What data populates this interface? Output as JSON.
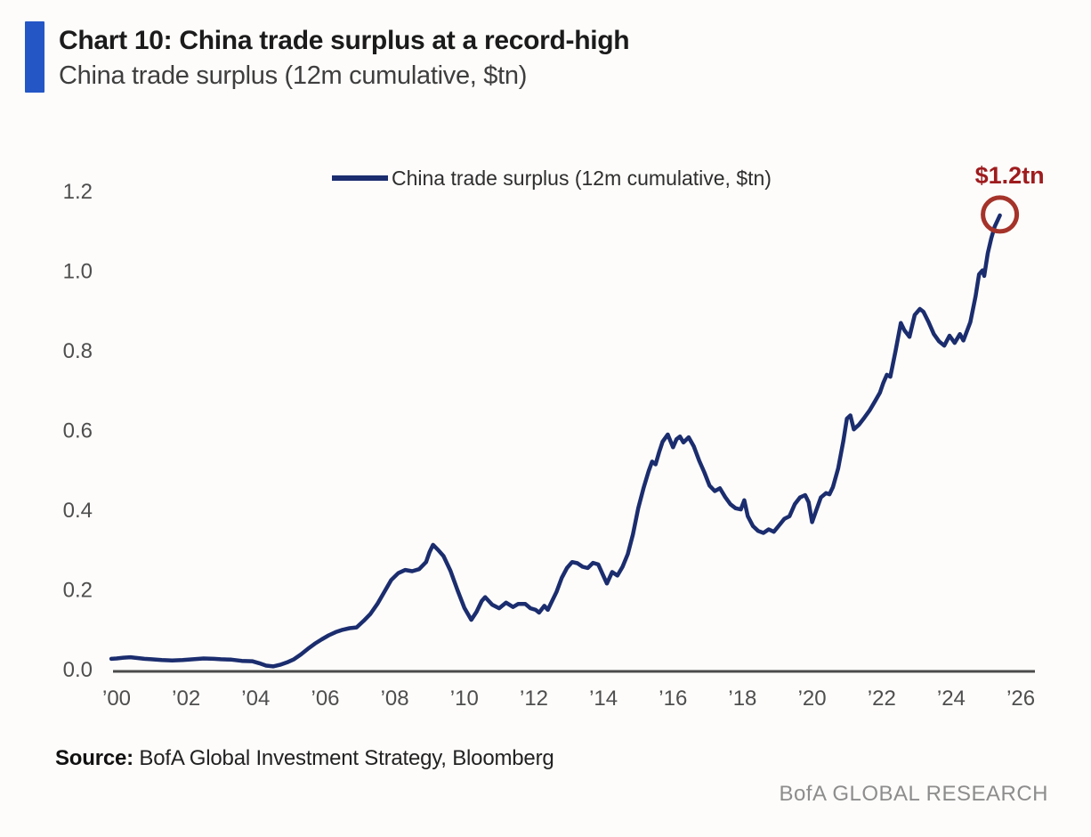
{
  "header": {
    "title": "Chart 10: China trade surplus at a record-high",
    "subtitle": "China trade surplus (12m cumulative, $tn)",
    "accent_color": "#2456C6"
  },
  "footer": {
    "source_label": "Source:",
    "source_text": " BofA Global Investment Strategy, Bloomberg",
    "branding": "BofA GLOBAL RESEARCH"
  },
  "chart_data": {
    "type": "line",
    "title": "China trade surplus (12m cumulative, $tn)",
    "legend_label": "China trade surplus (12m cumulative, $tn)",
    "legend_position": "top-center",
    "grid": false,
    "xlim": [
      2000,
      2026.75
    ],
    "ylim": [
      0.0,
      1.2
    ],
    "x_ticks": [
      {
        "year": 2000,
        "label": "’00"
      },
      {
        "year": 2002,
        "label": "’02"
      },
      {
        "year": 2004,
        "label": "’04"
      },
      {
        "year": 2006,
        "label": "’06"
      },
      {
        "year": 2008,
        "label": "’08"
      },
      {
        "year": 2010,
        "label": "’10"
      },
      {
        "year": 2012,
        "label": "’12"
      },
      {
        "year": 2014,
        "label": "’14"
      },
      {
        "year": 2016,
        "label": "’16"
      },
      {
        "year": 2018,
        "label": "’18"
      },
      {
        "year": 2020,
        "label": "’20"
      },
      {
        "year": 2022,
        "label": "’22"
      },
      {
        "year": 2024,
        "label": "’24"
      },
      {
        "year": 2026,
        "label": "’26"
      }
    ],
    "y_ticks": [
      {
        "value": 0.0,
        "label": "0.0"
      },
      {
        "value": 0.2,
        "label": "0.2"
      },
      {
        "value": 0.4,
        "label": "0.4"
      },
      {
        "value": 0.6,
        "label": "0.6"
      },
      {
        "value": 0.8,
        "label": "0.8"
      },
      {
        "value": 1.0,
        "label": "1.0"
      },
      {
        "value": 1.2,
        "label": "1.2"
      }
    ],
    "annotation": {
      "label": "$1.2tn",
      "x": 2025.4,
      "y": 1.14,
      "color": "#9E1C1E",
      "circle_color": "#A5332A"
    },
    "axis_color": "#4B4B4B",
    "series": [
      {
        "name": "China trade surplus (12m cumulative, $tn)",
        "color": "#1B2D6E",
        "points": [
          [
            1999.85,
            0.027
          ],
          [
            2000.0,
            0.028
          ],
          [
            2000.2,
            0.03
          ],
          [
            2000.4,
            0.031
          ],
          [
            2000.6,
            0.029
          ],
          [
            2000.8,
            0.027
          ],
          [
            2001.0,
            0.026
          ],
          [
            2001.3,
            0.024
          ],
          [
            2001.6,
            0.023
          ],
          [
            2001.9,
            0.024
          ],
          [
            2002.2,
            0.026
          ],
          [
            2002.5,
            0.028
          ],
          [
            2002.8,
            0.027
          ],
          [
            2003.0,
            0.026
          ],
          [
            2003.3,
            0.025
          ],
          [
            2003.6,
            0.022
          ],
          [
            2003.9,
            0.021
          ],
          [
            2004.1,
            0.016
          ],
          [
            2004.3,
            0.01
          ],
          [
            2004.5,
            0.008
          ],
          [
            2004.7,
            0.012
          ],
          [
            2004.9,
            0.018
          ],
          [
            2005.1,
            0.026
          ],
          [
            2005.3,
            0.038
          ],
          [
            2005.5,
            0.052
          ],
          [
            2005.7,
            0.065
          ],
          [
            2005.9,
            0.076
          ],
          [
            2006.1,
            0.086
          ],
          [
            2006.3,
            0.094
          ],
          [
            2006.5,
            0.1
          ],
          [
            2006.7,
            0.104
          ],
          [
            2006.9,
            0.106
          ],
          [
            2007.1,
            0.122
          ],
          [
            2007.3,
            0.14
          ],
          [
            2007.5,
            0.165
          ],
          [
            2007.7,
            0.195
          ],
          [
            2007.9,
            0.225
          ],
          [
            2008.1,
            0.242
          ],
          [
            2008.3,
            0.25
          ],
          [
            2008.5,
            0.247
          ],
          [
            2008.7,
            0.252
          ],
          [
            2008.9,
            0.27
          ],
          [
            2009.0,
            0.295
          ],
          [
            2009.1,
            0.313
          ],
          [
            2009.25,
            0.3
          ],
          [
            2009.4,
            0.285
          ],
          [
            2009.6,
            0.248
          ],
          [
            2009.8,
            0.2
          ],
          [
            2010.0,
            0.155
          ],
          [
            2010.2,
            0.125
          ],
          [
            2010.35,
            0.145
          ],
          [
            2010.5,
            0.172
          ],
          [
            2010.6,
            0.182
          ],
          [
            2010.8,
            0.163
          ],
          [
            2011.0,
            0.154
          ],
          [
            2011.2,
            0.168
          ],
          [
            2011.4,
            0.157
          ],
          [
            2011.55,
            0.165
          ],
          [
            2011.75,
            0.165
          ],
          [
            2011.9,
            0.154
          ],
          [
            2012.05,
            0.15
          ],
          [
            2012.15,
            0.143
          ],
          [
            2012.3,
            0.16
          ],
          [
            2012.4,
            0.15
          ],
          [
            2012.5,
            0.168
          ],
          [
            2012.65,
            0.195
          ],
          [
            2012.8,
            0.23
          ],
          [
            2012.95,
            0.255
          ],
          [
            2013.1,
            0.27
          ],
          [
            2013.25,
            0.267
          ],
          [
            2013.4,
            0.258
          ],
          [
            2013.55,
            0.255
          ],
          [
            2013.7,
            0.268
          ],
          [
            2013.85,
            0.264
          ],
          [
            2014.0,
            0.235
          ],
          [
            2014.1,
            0.216
          ],
          [
            2014.25,
            0.245
          ],
          [
            2014.4,
            0.236
          ],
          [
            2014.55,
            0.258
          ],
          [
            2014.7,
            0.29
          ],
          [
            2014.85,
            0.34
          ],
          [
            2015.0,
            0.405
          ],
          [
            2015.15,
            0.455
          ],
          [
            2015.3,
            0.498
          ],
          [
            2015.4,
            0.522
          ],
          [
            2015.5,
            0.515
          ],
          [
            2015.6,
            0.545
          ],
          [
            2015.7,
            0.572
          ],
          [
            2015.85,
            0.59
          ],
          [
            2016.0,
            0.558
          ],
          [
            2016.1,
            0.578
          ],
          [
            2016.2,
            0.585
          ],
          [
            2016.3,
            0.57
          ],
          [
            2016.45,
            0.583
          ],
          [
            2016.6,
            0.56
          ],
          [
            2016.75,
            0.525
          ],
          [
            2016.9,
            0.495
          ],
          [
            2017.05,
            0.462
          ],
          [
            2017.2,
            0.448
          ],
          [
            2017.35,
            0.455
          ],
          [
            2017.5,
            0.433
          ],
          [
            2017.65,
            0.415
          ],
          [
            2017.8,
            0.405
          ],
          [
            2017.95,
            0.402
          ],
          [
            2018.05,
            0.425
          ],
          [
            2018.15,
            0.385
          ],
          [
            2018.3,
            0.36
          ],
          [
            2018.45,
            0.348
          ],
          [
            2018.6,
            0.343
          ],
          [
            2018.75,
            0.352
          ],
          [
            2018.9,
            0.346
          ],
          [
            2019.05,
            0.362
          ],
          [
            2019.2,
            0.378
          ],
          [
            2019.35,
            0.385
          ],
          [
            2019.5,
            0.415
          ],
          [
            2019.65,
            0.432
          ],
          [
            2019.8,
            0.438
          ],
          [
            2019.9,
            0.42
          ],
          [
            2020.0,
            0.37
          ],
          [
            2020.1,
            0.395
          ],
          [
            2020.25,
            0.432
          ],
          [
            2020.4,
            0.443
          ],
          [
            2020.5,
            0.44
          ],
          [
            2020.6,
            0.458
          ],
          [
            2020.75,
            0.505
          ],
          [
            2020.9,
            0.575
          ],
          [
            2021.0,
            0.63
          ],
          [
            2021.1,
            0.638
          ],
          [
            2021.2,
            0.603
          ],
          [
            2021.35,
            0.615
          ],
          [
            2021.5,
            0.632
          ],
          [
            2021.65,
            0.65
          ],
          [
            2021.8,
            0.672
          ],
          [
            2021.95,
            0.695
          ],
          [
            2022.05,
            0.72
          ],
          [
            2022.15,
            0.74
          ],
          [
            2022.25,
            0.735
          ],
          [
            2022.4,
            0.8
          ],
          [
            2022.55,
            0.87
          ],
          [
            2022.65,
            0.852
          ],
          [
            2022.8,
            0.835
          ],
          [
            2022.95,
            0.89
          ],
          [
            2023.1,
            0.905
          ],
          [
            2023.2,
            0.898
          ],
          [
            2023.35,
            0.872
          ],
          [
            2023.5,
            0.842
          ],
          [
            2023.65,
            0.824
          ],
          [
            2023.8,
            0.813
          ],
          [
            2023.95,
            0.838
          ],
          [
            2024.1,
            0.82
          ],
          [
            2024.25,
            0.842
          ],
          [
            2024.35,
            0.826
          ],
          [
            2024.55,
            0.872
          ],
          [
            2024.7,
            0.937
          ],
          [
            2024.8,
            0.992
          ],
          [
            2024.9,
            1.002
          ],
          [
            2024.95,
            0.988
          ],
          [
            2025.05,
            1.045
          ],
          [
            2025.15,
            1.082
          ],
          [
            2025.25,
            1.112
          ],
          [
            2025.4,
            1.14
          ]
        ]
      }
    ]
  }
}
